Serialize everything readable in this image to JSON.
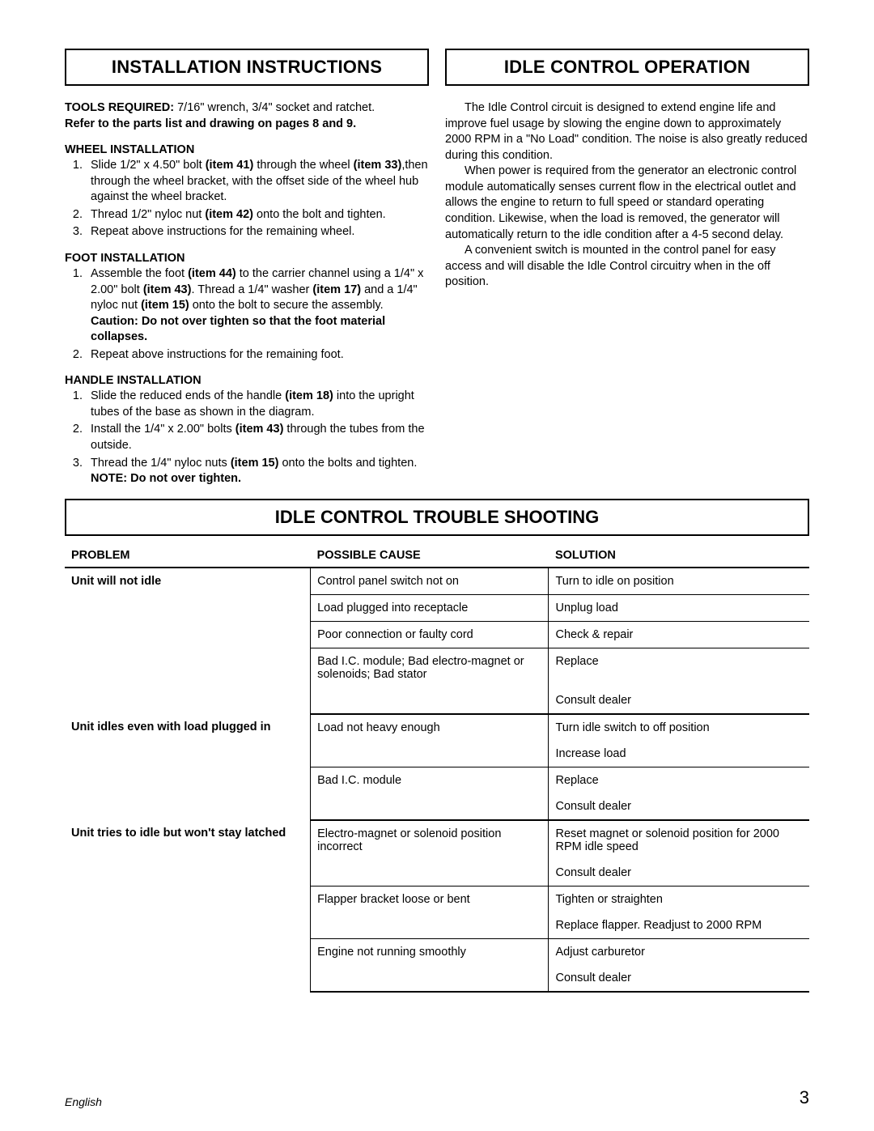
{
  "left": {
    "title": "INSTALLATION INSTRUCTIONS",
    "tools_label": "TOOLS  REQUIRED:",
    "tools_text": "  7/16\" wrench, 3/4\" socket and ratchet.",
    "refer": "Refer to the parts list and drawing on pages 8 and 9.",
    "wheel_head": "WHEEL INSTALLATION",
    "wheel_1a": "Slide 1/2\" x 4.50\" bolt ",
    "wheel_1b": "(item 41)",
    "wheel_1c": " through the wheel ",
    "wheel_1d": "(item 33)",
    "wheel_1e": ",then through the wheel bracket, with the offset side of the wheel hub against the wheel bracket.",
    "wheel_2a": "Thread 1/2\" nyloc nut ",
    "wheel_2b": "(item 42)",
    "wheel_2c": " onto the bolt and tighten.",
    "wheel_3": "Repeat above instructions for the remaining wheel.",
    "foot_head": "FOOT INSTALLATION",
    "foot_1a": "Assemble the foot ",
    "foot_1b": "(item 44)",
    "foot_1c": " to the carrier channel using a 1/4\" x 2.00\" bolt ",
    "foot_1d": "(item 43)",
    "foot_1e": ".  Thread a 1/4\" washer ",
    "foot_1f": "(item 17)",
    "foot_1g": " and a 1/4\" nyloc nut ",
    "foot_1h": "(item 15)",
    "foot_1i": " onto the bolt to secure the assembly.",
    "foot_caution": "Caution: Do not over tighten so that  the foot material collapses.",
    "foot_2": "Repeat above instructions for the remaining foot.",
    "handle_head": "HANDLE INSTALLATION",
    "handle_1a": "Slide the reduced ends of the handle ",
    "handle_1b": "(item 18)",
    "handle_1c": " into the upright tubes of the base as shown in the diagram.",
    "handle_2a": "Install the 1/4\" x 2.00\" bolts ",
    "handle_2b": "(item 43)",
    "handle_2c": " through the tubes from the outside.",
    "handle_3a": "Thread the 1/4\" nyloc nuts ",
    "handle_3b": "(item 15)",
    "handle_3c": " onto the bolts and tighten.",
    "handle_note": "NOTE:  Do not over tighten."
  },
  "right": {
    "title": "IDLE CONTROL OPERATION",
    "p1": "The Idle Control circuit is designed to extend engine life and improve fuel usage by slowing the engine down to approximately 2000 RPM in a \"No Load\" condition. The noise is also greatly reduced during this condition.",
    "p2": "When power is required from the generator an electronic control module automatically senses current flow in the electrical outlet and allows the engine to return to full speed or standard operating condition. Likewise, when the load is removed, the generator will automatically return to the idle condition after a 4-5 second delay.",
    "p3": "A convenient switch is mounted in the control panel for easy access and will disable the Idle Control circuitry when in the off position."
  },
  "trouble": {
    "title": "IDLE CONTROL TROUBLE SHOOTING",
    "headers": {
      "problem": "PROBLEM",
      "cause": "POSSIBLE CAUSE",
      "solution": "SOLUTION"
    },
    "col_widths": {
      "problem": "33%",
      "cause": "32%",
      "solution": "35%"
    },
    "rows": [
      {
        "problem": "Unit will not idle",
        "cause": "Control panel switch not on",
        "solution": "Turn to idle on position",
        "prob_rowspan": 5
      },
      {
        "cause": "Load plugged into receptacle",
        "solution": "Unplug load"
      },
      {
        "cause": "Poor connection or faulty cord",
        "solution": "Check & repair"
      },
      {
        "cause": "Bad I.C. module; Bad electro-magnet or solenoids; Bad stator",
        "solution": "Replace",
        "sol_noborder": true
      },
      {
        "cause": "",
        "solution": "Consult dealer",
        "thick": true
      },
      {
        "problem": "Unit idles even with load plugged in",
        "cause": "Load not heavy enough",
        "solution": "Turn idle switch to off position",
        "prob_rowspan": 4,
        "sol_noborder": true
      },
      {
        "cause": "",
        "solution": "Increase load"
      },
      {
        "cause": "Bad I.C. module",
        "solution": "Replace",
        "sol_noborder": true
      },
      {
        "cause": "",
        "solution": "Consult dealer",
        "thick": true
      },
      {
        "problem": "Unit tries to idle but won't stay latched",
        "cause": "Electro-magnet or solenoid position incorrect",
        "solution": "Reset magnet or solenoid position for 2000 RPM idle speed",
        "prob_rowspan": 6,
        "sol_noborder": true
      },
      {
        "cause": "",
        "solution": "Consult dealer"
      },
      {
        "cause": "Flapper bracket loose or bent",
        "solution": "Tighten or straighten",
        "sol_noborder": true
      },
      {
        "cause": "",
        "solution": "Replace flapper. Readjust to 2000 RPM"
      },
      {
        "cause": "Engine not running smoothly",
        "solution": "Adjust carburetor",
        "sol_noborder": true
      },
      {
        "cause": "",
        "solution": "Consult dealer",
        "thick": true
      }
    ]
  },
  "footer": {
    "lang": "English",
    "page": "3"
  }
}
